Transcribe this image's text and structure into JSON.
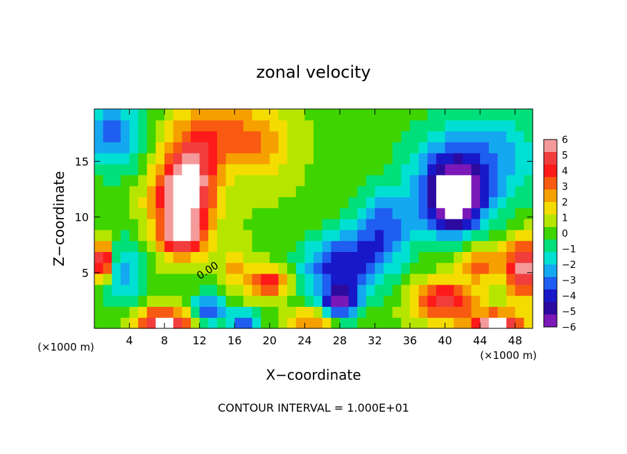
{
  "chart_data": {
    "type": "heatmap",
    "title": "zonal velocity",
    "xlabel": "X−coordinate",
    "ylabel": "Z−coordinate",
    "x_unit_left": "(×1000 m)",
    "x_unit_right": "(×1000 m)",
    "footer": "CONTOUR INTERVAL = 1.000E+01",
    "xlim": [
      0,
      50
    ],
    "ylim": [
      0,
      19.7
    ],
    "x_ticks": [
      "4",
      "8",
      "12",
      "16",
      "20",
      "24",
      "28",
      "32",
      "36",
      "40",
      "44",
      "48"
    ],
    "y_ticks": [
      "5",
      "10",
      "15"
    ],
    "contour_label": "0.00",
    "colorbar": {
      "min": -6,
      "max": 6,
      "tick_labels": [
        "6",
        "5",
        "4",
        "3",
        "2",
        "1",
        "0",
        "−1",
        "−2",
        "−3",
        "−4",
        "−5",
        "−6"
      ],
      "colors": [
        "#f59a9a",
        "#f23d3d",
        "#ff1a1a",
        "#f75a10",
        "#f6a000",
        "#f4dc00",
        "#b6e600",
        "#3ed400",
        "#00e07a",
        "#00e0d2",
        "#14a8f0",
        "#1f5ef0",
        "#1818c8",
        "#2c0aa0",
        "#7a18b8"
      ]
    },
    "field": {
      "nx": 50,
      "nz": 20,
      "background": 0.3,
      "features": [
        {
          "x": 10,
          "z": 11.8,
          "rx": 3.4,
          "rz": 3.0,
          "a": 5.6
        },
        {
          "x": 10,
          "z": 8.2,
          "rx": 2.6,
          "rz": 1.8,
          "a": 5.2
        },
        {
          "x": 11,
          "z": 14.5,
          "rx": 3.0,
          "rz": 3.5,
          "a": 3.0
        },
        {
          "x": 14,
          "z": 17.5,
          "rx": 5.0,
          "rz": 3.0,
          "a": 2.5
        },
        {
          "x": 19,
          "z": 16.5,
          "rx": 3.5,
          "rz": 3.5,
          "a": 1.6
        },
        {
          "x": 20,
          "z": 4.2,
          "rx": 2.2,
          "rz": 1.3,
          "a": 4.5
        },
        {
          "x": 16,
          "z": 5.5,
          "rx": 1.5,
          "rz": 2.0,
          "a": 2.0
        },
        {
          "x": 28,
          "z": 2.2,
          "rx": 2.2,
          "rz": 1.4,
          "a": -4.5
        },
        {
          "x": 28,
          "z": 5.5,
          "rx": 4.5,
          "rz": 3.0,
          "a": -4.5
        },
        {
          "x": 33,
          "z": 9.0,
          "rx": 3.5,
          "rz": 3.5,
          "a": -3.5
        },
        {
          "x": 41,
          "z": 11.5,
          "rx": 3.3,
          "rz": 3.2,
          "a": -6.8
        },
        {
          "x": 41,
          "z": 14.5,
          "rx": 6.0,
          "rz": 4.5,
          "a": -2.5
        },
        {
          "x": 47,
          "z": 15.5,
          "rx": 5.5,
          "rz": 4.5,
          "a": -1.8
        },
        {
          "x": 2,
          "z": 17.5,
          "rx": 4.0,
          "rz": 3.5,
          "a": -3.3
        },
        {
          "x": 3,
          "z": 5.0,
          "rx": 2.5,
          "rz": 3.0,
          "a": -3.0
        },
        {
          "x": 1,
          "z": 6.0,
          "rx": 1.2,
          "rz": 1.8,
          "a": 6.5
        },
        {
          "x": 40,
          "z": 2.5,
          "rx": 3.5,
          "rz": 1.8,
          "a": 4.5
        },
        {
          "x": 44,
          "z": 6.0,
          "rx": 2.5,
          "rz": 1.7,
          "a": 3.0
        },
        {
          "x": 49,
          "z": 5.5,
          "rx": 2.0,
          "rz": 2.5,
          "a": 5.8
        },
        {
          "x": 8,
          "z": 0.5,
          "rx": 3.0,
          "rz": 1.3,
          "a": 6.0
        },
        {
          "x": 46,
          "z": 0.5,
          "rx": 3.0,
          "rz": 1.0,
          "a": 6.0
        },
        {
          "x": 17,
          "z": 0.7,
          "rx": 1.8,
          "rz": 1.0,
          "a": -3.5
        },
        {
          "x": 25,
          "z": 0.8,
          "rx": 2.5,
          "rz": 1.0,
          "a": 3.0
        },
        {
          "x": 13,
          "z": 1.8,
          "rx": 2.0,
          "rz": 1.5,
          "a": -4.0
        }
      ]
    }
  }
}
